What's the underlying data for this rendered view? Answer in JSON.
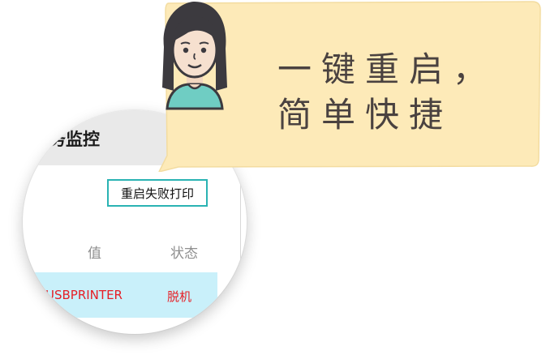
{
  "monitor": {
    "title": "务监控",
    "restart_button": "重启失败打印",
    "columns": {
      "value": "值",
      "status": "状态"
    },
    "row": {
      "name": "USBPRINTER",
      "status": "脱机"
    }
  },
  "bubble": {
    "message": "一键重启，简单快捷"
  },
  "colors": {
    "bubble_fill": "#fdeab8",
    "button_border": "#2ab3b3",
    "row_highlight": "#c9f0fa",
    "alert_text": "#e61e25"
  },
  "icons": {
    "avatar": "girl-avatar-icon"
  }
}
